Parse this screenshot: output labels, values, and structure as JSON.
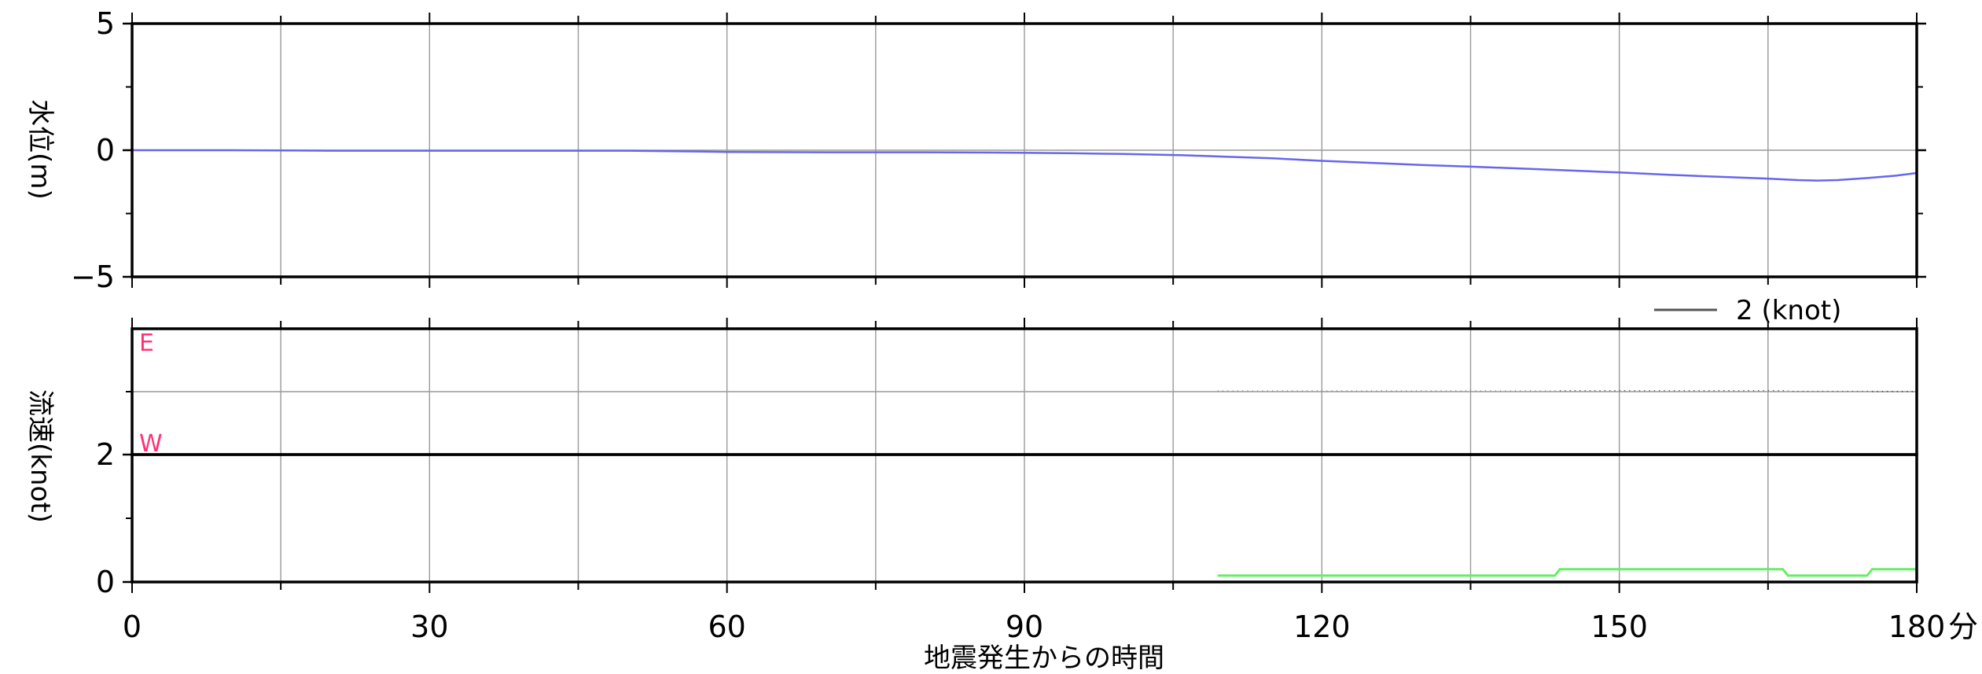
{
  "chart_data": [
    {
      "type": "line",
      "ylabel": "水位(m)",
      "xlim": [
        0,
        180
      ],
      "ylim": [
        -5,
        5
      ],
      "y_ticks": [
        "5",
        "0",
        "−5"
      ],
      "y_tick_values": [
        5,
        0,
        -5
      ],
      "grid": true,
      "series": [
        {
          "color": "#6666ee",
          "x": [
            0,
            10,
            20,
            30,
            40,
            50,
            57,
            60,
            70,
            80,
            90,
            95,
            100,
            106,
            110,
            115,
            120,
            125,
            130,
            135,
            140,
            145,
            150,
            155,
            160,
            165,
            168,
            170,
            172,
            175,
            178,
            180
          ],
          "y": [
            0,
            0,
            -0.02,
            -0.02,
            -0.02,
            -0.02,
            -0.05,
            -0.07,
            -0.08,
            -0.08,
            -0.1,
            -0.12,
            -0.15,
            -0.2,
            -0.25,
            -0.32,
            -0.42,
            -0.5,
            -0.58,
            -0.65,
            -0.72,
            -0.8,
            -0.88,
            -0.97,
            -1.05,
            -1.12,
            -1.18,
            -1.2,
            -1.18,
            -1.1,
            -1.0,
            -0.9
          ]
        }
      ]
    },
    {
      "type": "line",
      "ylabel": "流速(knot)",
      "xlabel": "地震発生からの時間",
      "x_unit": "分",
      "xlim": [
        0,
        180
      ],
      "ylim": [
        0,
        2
      ],
      "x_ticks": [
        "0",
        "30",
        "60",
        "90",
        "120",
        "150",
        "180"
      ],
      "x_tick_values": [
        0,
        30,
        60,
        90,
        120,
        150,
        180
      ],
      "y_ticks": [
        "2",
        "0"
      ],
      "y_tick_values": [
        2,
        0
      ],
      "grid": true,
      "direction_labels": {
        "east": "E",
        "west": "W"
      },
      "legend": {
        "label": "2 (knot)",
        "position": "top-right"
      },
      "vector_series": {
        "color": "#555555",
        "x_start": 109.5,
        "x_end": 180,
        "x_step": 0.5
      },
      "series": [
        {
          "color": "#66ee66",
          "x": [
            109.5,
            143.5,
            144,
            166.5,
            167,
            175,
            175.5,
            180
          ],
          "y": [
            0.1,
            0.1,
            0.2,
            0.2,
            0.1,
            0.1,
            0.2,
            0.2
          ]
        }
      ]
    }
  ]
}
